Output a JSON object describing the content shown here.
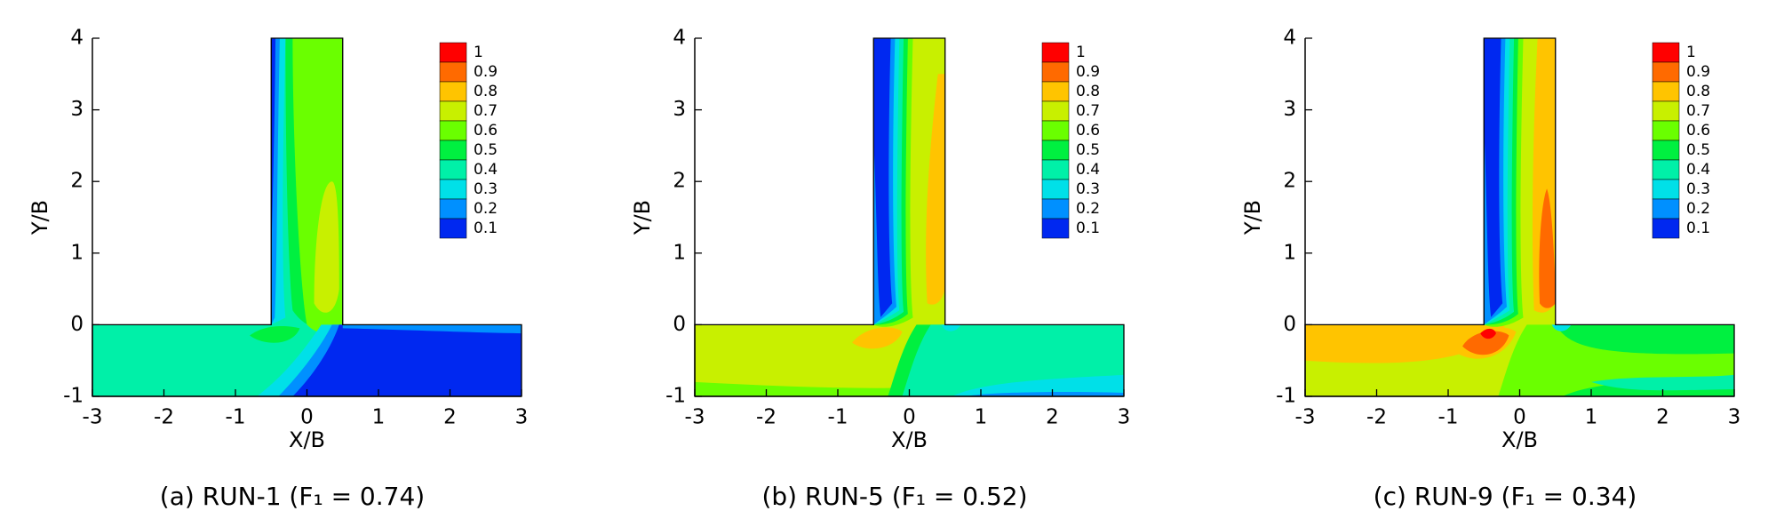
{
  "chart_data": [
    {
      "type": "contour",
      "caption": "(a) RUN-1 (F₁ = 0.74)",
      "xlabel": "X/B",
      "ylabel": "Y/B",
      "xlim": [
        -3,
        3
      ],
      "ylim": [
        -1,
        4
      ],
      "xticks": [
        -3,
        -2,
        -1,
        0,
        1,
        2,
        3
      ],
      "yticks": [
        -1,
        0,
        1,
        2,
        3,
        4
      ],
      "levels": [
        1,
        0.9,
        0.8,
        0.7,
        0.6,
        0.5,
        0.4,
        0.3,
        0.2,
        0.1
      ],
      "colors": [
        "#ff0000",
        "#ff6a00",
        "#ffc400",
        "#c8f000",
        "#6aff00",
        "#00f040",
        "#00f0a8",
        "#00e0e8",
        "#0090ff",
        "#0028f0"
      ]
    },
    {
      "type": "contour",
      "caption": "(b) RUN-5 (F₁ = 0.52)",
      "xlabel": "X/B",
      "ylabel": "Y/B",
      "xlim": [
        -3,
        3
      ],
      "ylim": [
        -1,
        4
      ],
      "xticks": [
        -3,
        -2,
        -1,
        0,
        1,
        2,
        3
      ],
      "yticks": [
        -1,
        0,
        1,
        2,
        3,
        4
      ],
      "levels": [
        1,
        0.9,
        0.8,
        0.7,
        0.6,
        0.5,
        0.4,
        0.3,
        0.2,
        0.1
      ],
      "colors": [
        "#ff0000",
        "#ff6a00",
        "#ffc400",
        "#c8f000",
        "#6aff00",
        "#00f040",
        "#00f0a8",
        "#00e0e8",
        "#0090ff",
        "#0028f0"
      ]
    },
    {
      "type": "contour",
      "caption": "(c) RUN-9 (F₁ = 0.34)",
      "xlabel": "X/B",
      "ylabel": "Y/B",
      "xlim": [
        -3,
        3
      ],
      "ylim": [
        -1,
        4
      ],
      "xticks": [
        -3,
        -2,
        -1,
        0,
        1,
        2,
        3
      ],
      "yticks": [
        -1,
        0,
        1,
        2,
        3,
        4
      ],
      "levels": [
        1,
        0.9,
        0.8,
        0.7,
        0.6,
        0.5,
        0.4,
        0.3,
        0.2,
        0.1
      ],
      "colors": [
        "#ff0000",
        "#ff6a00",
        "#ffc400",
        "#c8f000",
        "#6aff00",
        "#00f040",
        "#00f0a8",
        "#00e0e8",
        "#0090ff",
        "#0028f0"
      ]
    }
  ]
}
